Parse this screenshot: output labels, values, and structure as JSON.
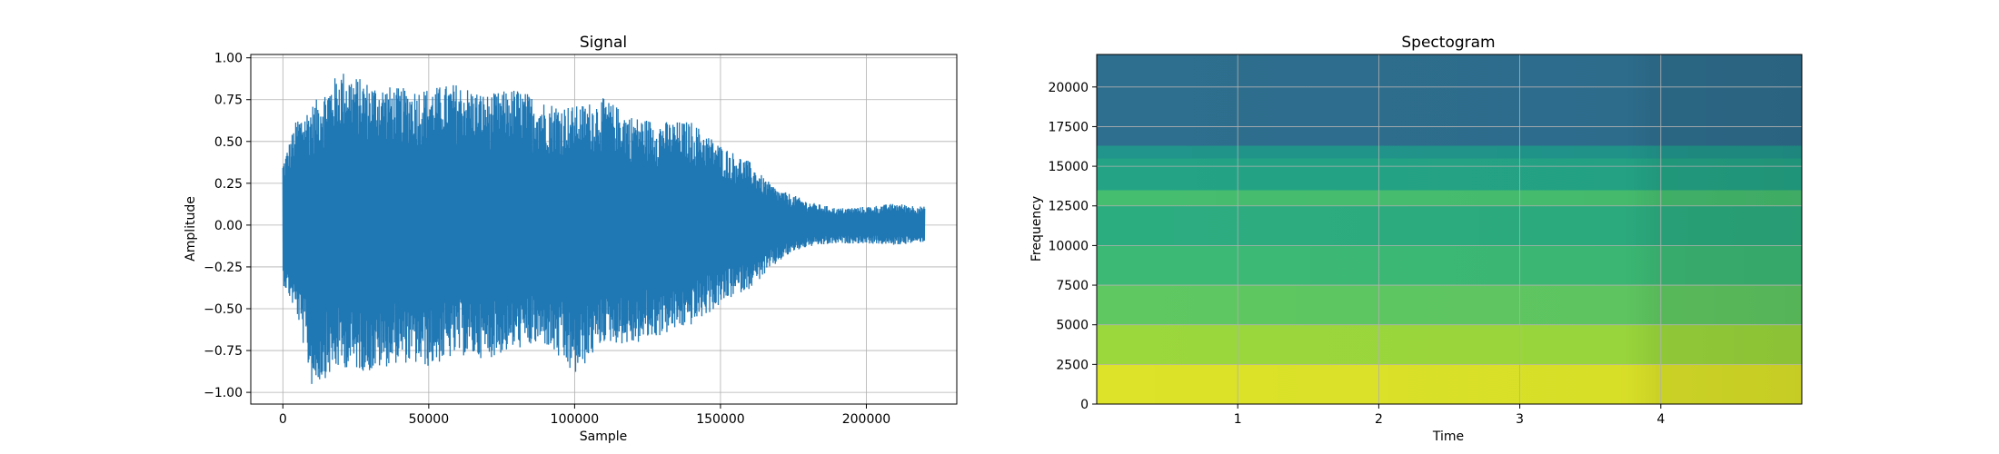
{
  "charts": [
    {
      "type": "line",
      "title": "Signal",
      "xlabel": "Sample",
      "ylabel": "Amplitude",
      "xlim": [
        -11000,
        231000
      ],
      "ylim": [
        -1.07,
        1.02
      ],
      "x_ticks": [
        0,
        50000,
        100000,
        150000,
        200000
      ],
      "x_tick_labels": [
        "0",
        "50000",
        "100000",
        "150000",
        "200000"
      ],
      "y_ticks": [
        -1.0,
        -0.75,
        -0.5,
        -0.25,
        0.0,
        0.25,
        0.5,
        0.75,
        1.0
      ],
      "y_tick_labels": [
        "−1.00",
        "−0.75",
        "−0.50",
        "−0.25",
        "0.00",
        "0.25",
        "0.50",
        "0.75",
        "1.00"
      ],
      "grid": true,
      "line_color": "#1f77b4",
      "series": [
        {
          "x": [
            0,
            5000,
            10000,
            20000,
            30000,
            40000,
            50000,
            60000,
            70000,
            80000,
            90000,
            100000,
            110000,
            120000,
            130000,
            140000,
            150000,
            155000,
            160000,
            165000,
            170000,
            175000,
            180000,
            190000,
            200000,
            210000,
            220000
          ],
          "upper": [
            0.38,
            0.65,
            0.72,
            0.93,
            0.85,
            0.82,
            0.82,
            0.85,
            0.78,
            0.82,
            0.74,
            0.71,
            0.76,
            0.65,
            0.62,
            0.62,
            0.48,
            0.43,
            0.38,
            0.28,
            0.21,
            0.18,
            0.14,
            0.1,
            0.11,
            0.13,
            0.11
          ],
          "lower": [
            -0.35,
            -0.55,
            -0.97,
            -0.85,
            -0.88,
            -0.82,
            -0.85,
            -0.78,
            -0.8,
            -0.74,
            -0.72,
            -0.91,
            -0.7,
            -0.72,
            -0.66,
            -0.6,
            -0.48,
            -0.42,
            -0.38,
            -0.3,
            -0.22,
            -0.16,
            -0.13,
            -0.11,
            -0.11,
            -0.12,
            -0.1
          ]
        }
      ]
    },
    {
      "type": "heatmap",
      "title": "Spectogram",
      "xlabel": "Time",
      "ylabel": "Frequency",
      "xlim": [
        0.0,
        5.0
      ],
      "ylim": [
        0,
        22050
      ],
      "x_ticks": [
        1,
        2,
        3,
        4
      ],
      "x_tick_labels": [
        "1",
        "2",
        "3",
        "4"
      ],
      "y_ticks": [
        0,
        2500,
        5000,
        7500,
        10000,
        12500,
        15000,
        17500,
        20000
      ],
      "y_tick_labels": [
        "0",
        "2500",
        "5000",
        "7500",
        "10000",
        "12500",
        "15000",
        "17500",
        "20000"
      ],
      "grid": true,
      "colormap": "viridis",
      "frequency_bands": [
        {
          "from": 0,
          "to": 2500,
          "intensity": 0.95
        },
        {
          "from": 2500,
          "to": 5000,
          "intensity": 0.85
        },
        {
          "from": 5000,
          "to": 7500,
          "intensity": 0.75
        },
        {
          "from": 7500,
          "to": 10000,
          "intensity": 0.68
        },
        {
          "from": 10000,
          "to": 12500,
          "intensity": 0.62
        },
        {
          "from": 12500,
          "to": 13500,
          "intensity": 0.7
        },
        {
          "from": 13500,
          "to": 15500,
          "intensity": 0.58
        },
        {
          "from": 15500,
          "to": 16300,
          "intensity": 0.52
        },
        {
          "from": 16300,
          "to": 22050,
          "intensity": 0.36
        }
      ]
    }
  ]
}
